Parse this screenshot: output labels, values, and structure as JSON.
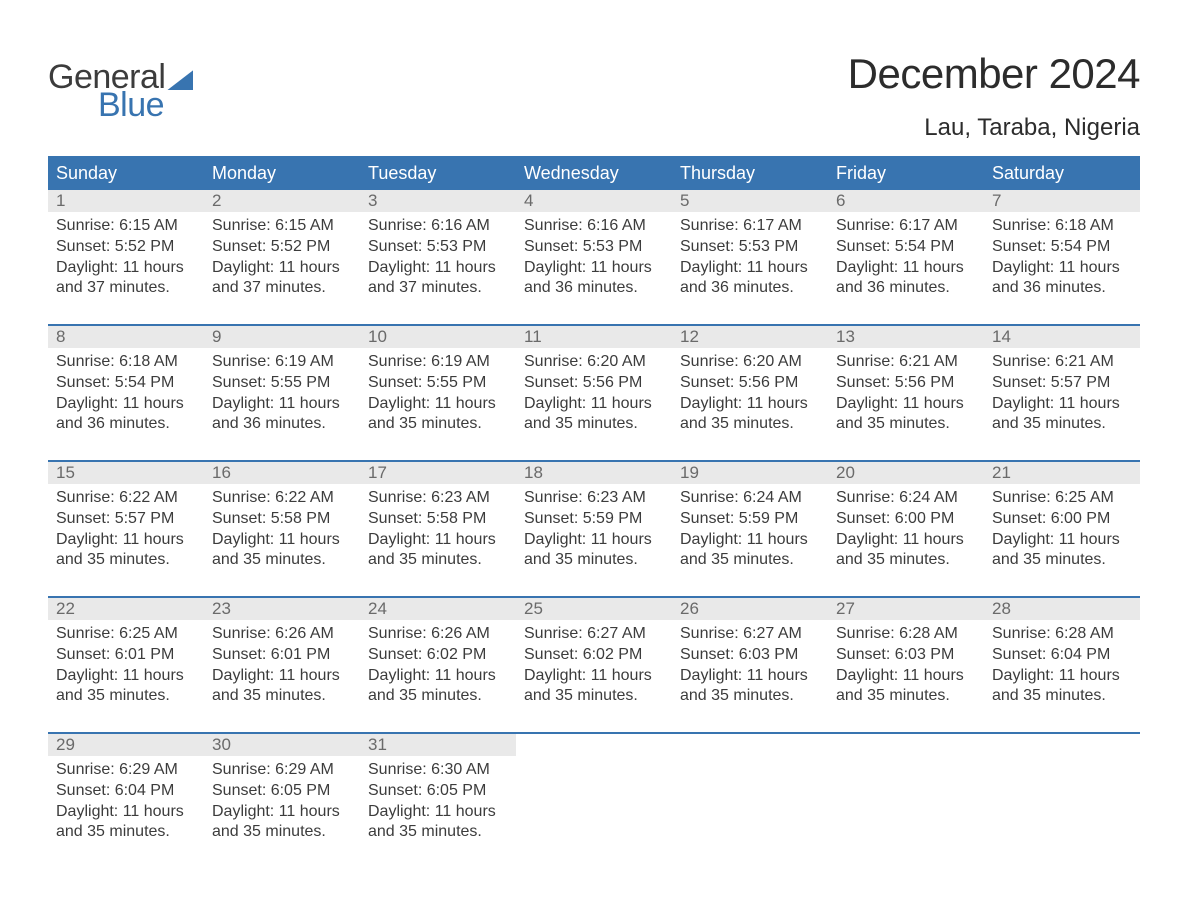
{
  "logo": {
    "word1": "General",
    "word2": "Blue",
    "accent_color": "#3874b0"
  },
  "title": "December 2024",
  "location": "Lau, Taraba, Nigeria",
  "colors": {
    "header_bg": "#3874b0",
    "header_text": "#ffffff",
    "daynum_bg": "#e9e9e9",
    "daynum_text": "#6a6a6a",
    "body_text": "#3c3c3c",
    "week_border": "#3874b0",
    "page_bg": "#ffffff"
  },
  "typography": {
    "title_fontsize": 42,
    "location_fontsize": 24,
    "dayhead_fontsize": 18,
    "daynum_fontsize": 17,
    "cell_fontsize": 16,
    "logo_fontsize": 34
  },
  "day_headers": [
    "Sunday",
    "Monday",
    "Tuesday",
    "Wednesday",
    "Thursday",
    "Friday",
    "Saturday"
  ],
  "weeks": [
    [
      {
        "n": "1",
        "sunrise": "6:15 AM",
        "sunset": "5:52 PM",
        "dh": "11",
        "dm": "37"
      },
      {
        "n": "2",
        "sunrise": "6:15 AM",
        "sunset": "5:52 PM",
        "dh": "11",
        "dm": "37"
      },
      {
        "n": "3",
        "sunrise": "6:16 AM",
        "sunset": "5:53 PM",
        "dh": "11",
        "dm": "37"
      },
      {
        "n": "4",
        "sunrise": "6:16 AM",
        "sunset": "5:53 PM",
        "dh": "11",
        "dm": "36"
      },
      {
        "n": "5",
        "sunrise": "6:17 AM",
        "sunset": "5:53 PM",
        "dh": "11",
        "dm": "36"
      },
      {
        "n": "6",
        "sunrise": "6:17 AM",
        "sunset": "5:54 PM",
        "dh": "11",
        "dm": "36"
      },
      {
        "n": "7",
        "sunrise": "6:18 AM",
        "sunset": "5:54 PM",
        "dh": "11",
        "dm": "36"
      }
    ],
    [
      {
        "n": "8",
        "sunrise": "6:18 AM",
        "sunset": "5:54 PM",
        "dh": "11",
        "dm": "36"
      },
      {
        "n": "9",
        "sunrise": "6:19 AM",
        "sunset": "5:55 PM",
        "dh": "11",
        "dm": "36"
      },
      {
        "n": "10",
        "sunrise": "6:19 AM",
        "sunset": "5:55 PM",
        "dh": "11",
        "dm": "35"
      },
      {
        "n": "11",
        "sunrise": "6:20 AM",
        "sunset": "5:56 PM",
        "dh": "11",
        "dm": "35"
      },
      {
        "n": "12",
        "sunrise": "6:20 AM",
        "sunset": "5:56 PM",
        "dh": "11",
        "dm": "35"
      },
      {
        "n": "13",
        "sunrise": "6:21 AM",
        "sunset": "5:56 PM",
        "dh": "11",
        "dm": "35"
      },
      {
        "n": "14",
        "sunrise": "6:21 AM",
        "sunset": "5:57 PM",
        "dh": "11",
        "dm": "35"
      }
    ],
    [
      {
        "n": "15",
        "sunrise": "6:22 AM",
        "sunset": "5:57 PM",
        "dh": "11",
        "dm": "35"
      },
      {
        "n": "16",
        "sunrise": "6:22 AM",
        "sunset": "5:58 PM",
        "dh": "11",
        "dm": "35"
      },
      {
        "n": "17",
        "sunrise": "6:23 AM",
        "sunset": "5:58 PM",
        "dh": "11",
        "dm": "35"
      },
      {
        "n": "18",
        "sunrise": "6:23 AM",
        "sunset": "5:59 PM",
        "dh": "11",
        "dm": "35"
      },
      {
        "n": "19",
        "sunrise": "6:24 AM",
        "sunset": "5:59 PM",
        "dh": "11",
        "dm": "35"
      },
      {
        "n": "20",
        "sunrise": "6:24 AM",
        "sunset": "6:00 PM",
        "dh": "11",
        "dm": "35"
      },
      {
        "n": "21",
        "sunrise": "6:25 AM",
        "sunset": "6:00 PM",
        "dh": "11",
        "dm": "35"
      }
    ],
    [
      {
        "n": "22",
        "sunrise": "6:25 AM",
        "sunset": "6:01 PM",
        "dh": "11",
        "dm": "35"
      },
      {
        "n": "23",
        "sunrise": "6:26 AM",
        "sunset": "6:01 PM",
        "dh": "11",
        "dm": "35"
      },
      {
        "n": "24",
        "sunrise": "6:26 AM",
        "sunset": "6:02 PM",
        "dh": "11",
        "dm": "35"
      },
      {
        "n": "25",
        "sunrise": "6:27 AM",
        "sunset": "6:02 PM",
        "dh": "11",
        "dm": "35"
      },
      {
        "n": "26",
        "sunrise": "6:27 AM",
        "sunset": "6:03 PM",
        "dh": "11",
        "dm": "35"
      },
      {
        "n": "27",
        "sunrise": "6:28 AM",
        "sunset": "6:03 PM",
        "dh": "11",
        "dm": "35"
      },
      {
        "n": "28",
        "sunrise": "6:28 AM",
        "sunset": "6:04 PM",
        "dh": "11",
        "dm": "35"
      }
    ],
    [
      {
        "n": "29",
        "sunrise": "6:29 AM",
        "sunset": "6:04 PM",
        "dh": "11",
        "dm": "35"
      },
      {
        "n": "30",
        "sunrise": "6:29 AM",
        "sunset": "6:05 PM",
        "dh": "11",
        "dm": "35"
      },
      {
        "n": "31",
        "sunrise": "6:30 AM",
        "sunset": "6:05 PM",
        "dh": "11",
        "dm": "35"
      },
      null,
      null,
      null,
      null
    ]
  ],
  "labels": {
    "sunrise_prefix": "Sunrise: ",
    "sunset_prefix": "Sunset: ",
    "daylight_prefix": "Daylight: ",
    "hours_word": " hours",
    "and_word": "and ",
    "minutes_word": " minutes."
  }
}
